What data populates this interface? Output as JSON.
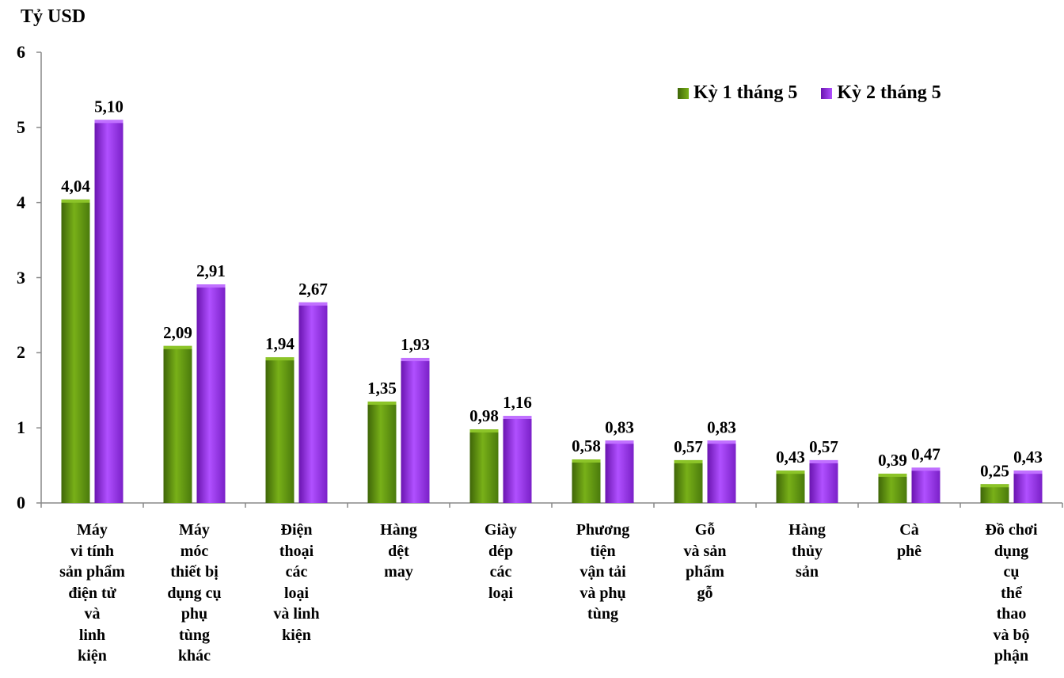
{
  "chart_data": {
    "type": "bar",
    "unit": "Tỷ USD",
    "ylim": [
      0,
      6
    ],
    "yticks": [
      "0",
      "1",
      "2",
      "3",
      "4",
      "5",
      "6"
    ],
    "categories": [
      "Máy\nvi tính\nsản phẩm\nđiện tử\nvà\nlinh\nkiện",
      "Máy\nmóc\nthiết bị\ndụng cụ\nphụ\ntùng\nkhác",
      "Điện\nthoại\ncác\nloại\nvà linh\nkiện",
      "Hàng\ndệt\nmay",
      "Giày\ndép\ncác\nloại",
      "Phương\ntiện\nvận tải\nvà phụ\ntùng",
      "Gỗ\nvà sản\nphẩm\ngỗ",
      "Hàng\nthủy\nsản",
      "Cà\nphê",
      "Đồ chơi\ndụng\ncụ\nthể\nthao\nvà bộ\nphận"
    ],
    "series": [
      {
        "name": "Kỳ 1 tháng 5",
        "color": "#5a8a10",
        "values": [
          4.04,
          2.09,
          1.94,
          1.35,
          0.98,
          0.58,
          0.57,
          0.43,
          0.39,
          0.25
        ],
        "labels": [
          "4,04",
          "2,09",
          "1,94",
          "1,35",
          "0,98",
          "0,58",
          "0,57",
          "0,43",
          "0,39",
          "0,25"
        ]
      },
      {
        "name": "Kỳ 2 tháng 5",
        "color": "#9b30e8",
        "values": [
          5.1,
          2.91,
          2.67,
          1.93,
          1.16,
          0.83,
          0.83,
          0.57,
          0.47,
          0.43
        ],
        "labels": [
          "5,10",
          "2,91",
          "2,67",
          "1,93",
          "1,16",
          "0,83",
          "0,83",
          "0,57",
          "0,47",
          "0,43"
        ]
      }
    ],
    "legend_position": "top-right",
    "grid": false
  }
}
